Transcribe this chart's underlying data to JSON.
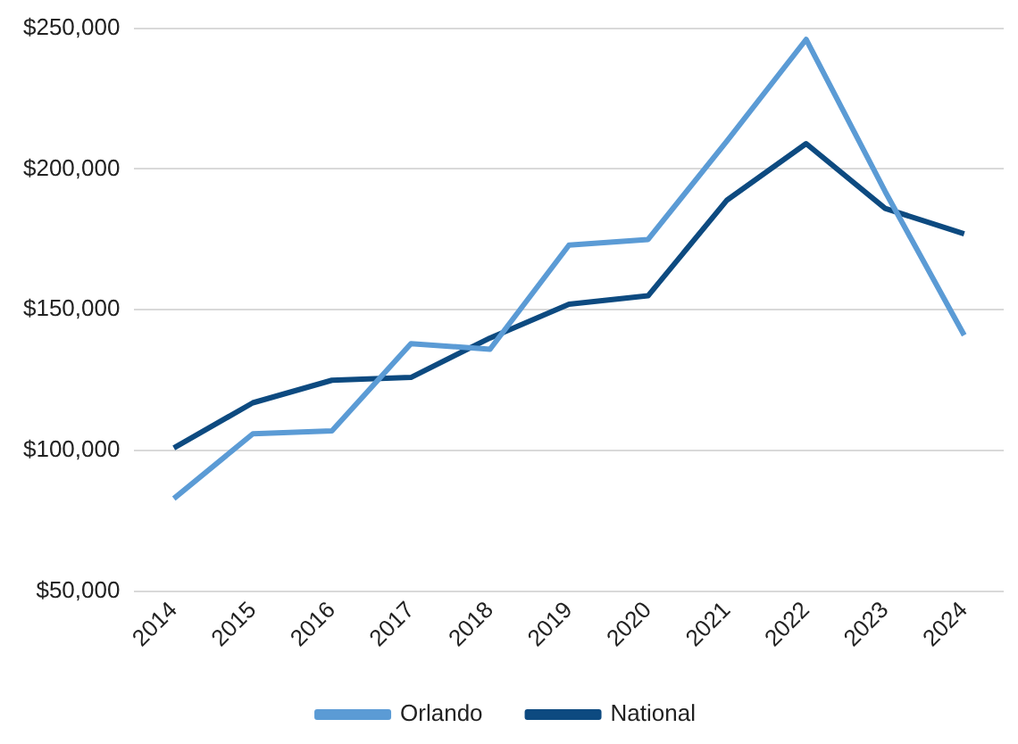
{
  "chart_data": {
    "type": "line",
    "categories": [
      "2014",
      "2015",
      "2016",
      "2017",
      "2018",
      "2019",
      "2020",
      "2021",
      "2022",
      "2023",
      "2024"
    ],
    "series": [
      {
        "name": "Orlando",
        "color": "#5b9bd5",
        "values": [
          83000,
          106000,
          107000,
          138000,
          136000,
          173000,
          175000,
          210000,
          246000,
          192000,
          141000
        ]
      },
      {
        "name": "National",
        "color": "#0d4a80",
        "values": [
          101000,
          117000,
          125000,
          126000,
          140000,
          152000,
          155000,
          189000,
          209000,
          186000,
          177000
        ]
      }
    ],
    "ylim": [
      50000,
      250000
    ],
    "yticks": [
      {
        "value": 50000,
        "label": "$50,000"
      },
      {
        "value": 100000,
        "label": "$100,000"
      },
      {
        "value": 150000,
        "label": "$150,000"
      },
      {
        "value": 200000,
        "label": "$200,000"
      },
      {
        "value": 250000,
        "label": "$250,000"
      }
    ],
    "grid": "y",
    "legend": "bottom",
    "marker": "none",
    "line_style": "solid"
  }
}
